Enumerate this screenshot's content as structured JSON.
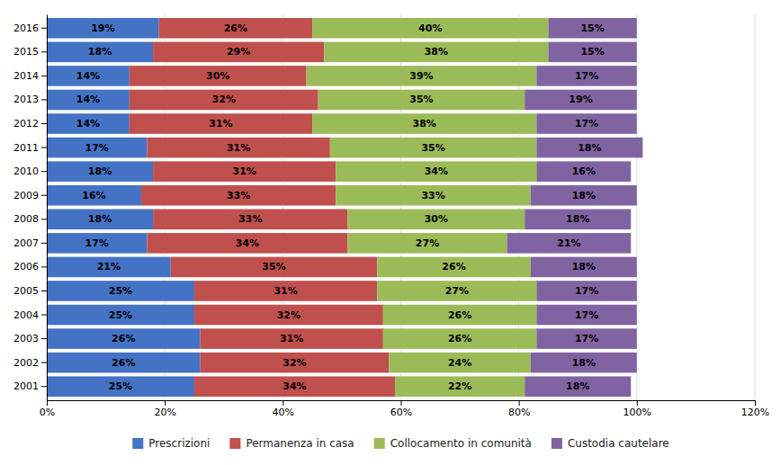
{
  "chart_data": {
    "type": "bar",
    "orientation": "horizontal",
    "stacked": true,
    "data_labels": true,
    "grid": true,
    "legend": "bottom",
    "categories": [
      "2016",
      "2015",
      "2014",
      "2013",
      "2012",
      "2011",
      "2010",
      "2009",
      "2008",
      "2007",
      "2006",
      "2005",
      "2004",
      "2003",
      "2002",
      "2001"
    ],
    "series": [
      {
        "name": "Prescrizioni",
        "color": "#4472C4",
        "values": [
          19,
          18,
          14,
          14,
          14,
          17,
          18,
          16,
          18,
          17,
          21,
          25,
          25,
          26,
          26,
          25
        ],
        "value_labels": [
          "19%",
          "18%",
          "14%",
          "14%",
          "14%",
          "17%",
          "18%",
          "16%",
          "18%",
          "17%",
          "21%",
          "25%",
          "25%",
          "26%",
          "26%",
          "25%"
        ]
      },
      {
        "name": "Permanenza in casa",
        "color": "#C0504D",
        "values": [
          26,
          29,
          30,
          32,
          31,
          31,
          31,
          33,
          33,
          34,
          35,
          31,
          32,
          31,
          32,
          34
        ],
        "value_labels": [
          "26%",
          "29%",
          "30%",
          "32%",
          "31%",
          "31%",
          "31%",
          "33%",
          "33%",
          "34%",
          "35%",
          "31%",
          "32%",
          "31%",
          "32%",
          "34%"
        ]
      },
      {
        "name": "Collocamento in comunità",
        "color": "#9BBB59",
        "values": [
          40,
          38,
          39,
          35,
          38,
          35,
          34,
          33,
          30,
          27,
          26,
          27,
          26,
          26,
          24,
          22
        ],
        "value_labels": [
          "40%",
          "38%",
          "39%",
          "35%",
          "38%",
          "35%",
          "34%",
          "33%",
          "30%",
          "27%",
          "26%",
          "27%",
          "26%",
          "26%",
          "24%",
          "22%"
        ]
      },
      {
        "name": "Custodia cautelare",
        "color": "#8064A2",
        "values": [
          15,
          15,
          17,
          19,
          17,
          18,
          16,
          18,
          18,
          21,
          18,
          17,
          17,
          17,
          18,
          18
        ],
        "value_labels": [
          "15%",
          "15%",
          "17%",
          "19%",
          "17%",
          "18%",
          "16%",
          "18%",
          "18%",
          "21%",
          "18%",
          "17%",
          "17%",
          "17%",
          "18%",
          "18%"
        ]
      }
    ],
    "xlim": [
      0,
      120
    ],
    "xticks": [
      {
        "value": 0,
        "label": "0%"
      },
      {
        "value": 20,
        "label": "20%"
      },
      {
        "value": 40,
        "label": "40%"
      },
      {
        "value": 60,
        "label": "60%"
      },
      {
        "value": 80,
        "label": "80%"
      },
      {
        "value": 100,
        "label": "100%"
      },
      {
        "value": 120,
        "label": "120%"
      }
    ]
  }
}
